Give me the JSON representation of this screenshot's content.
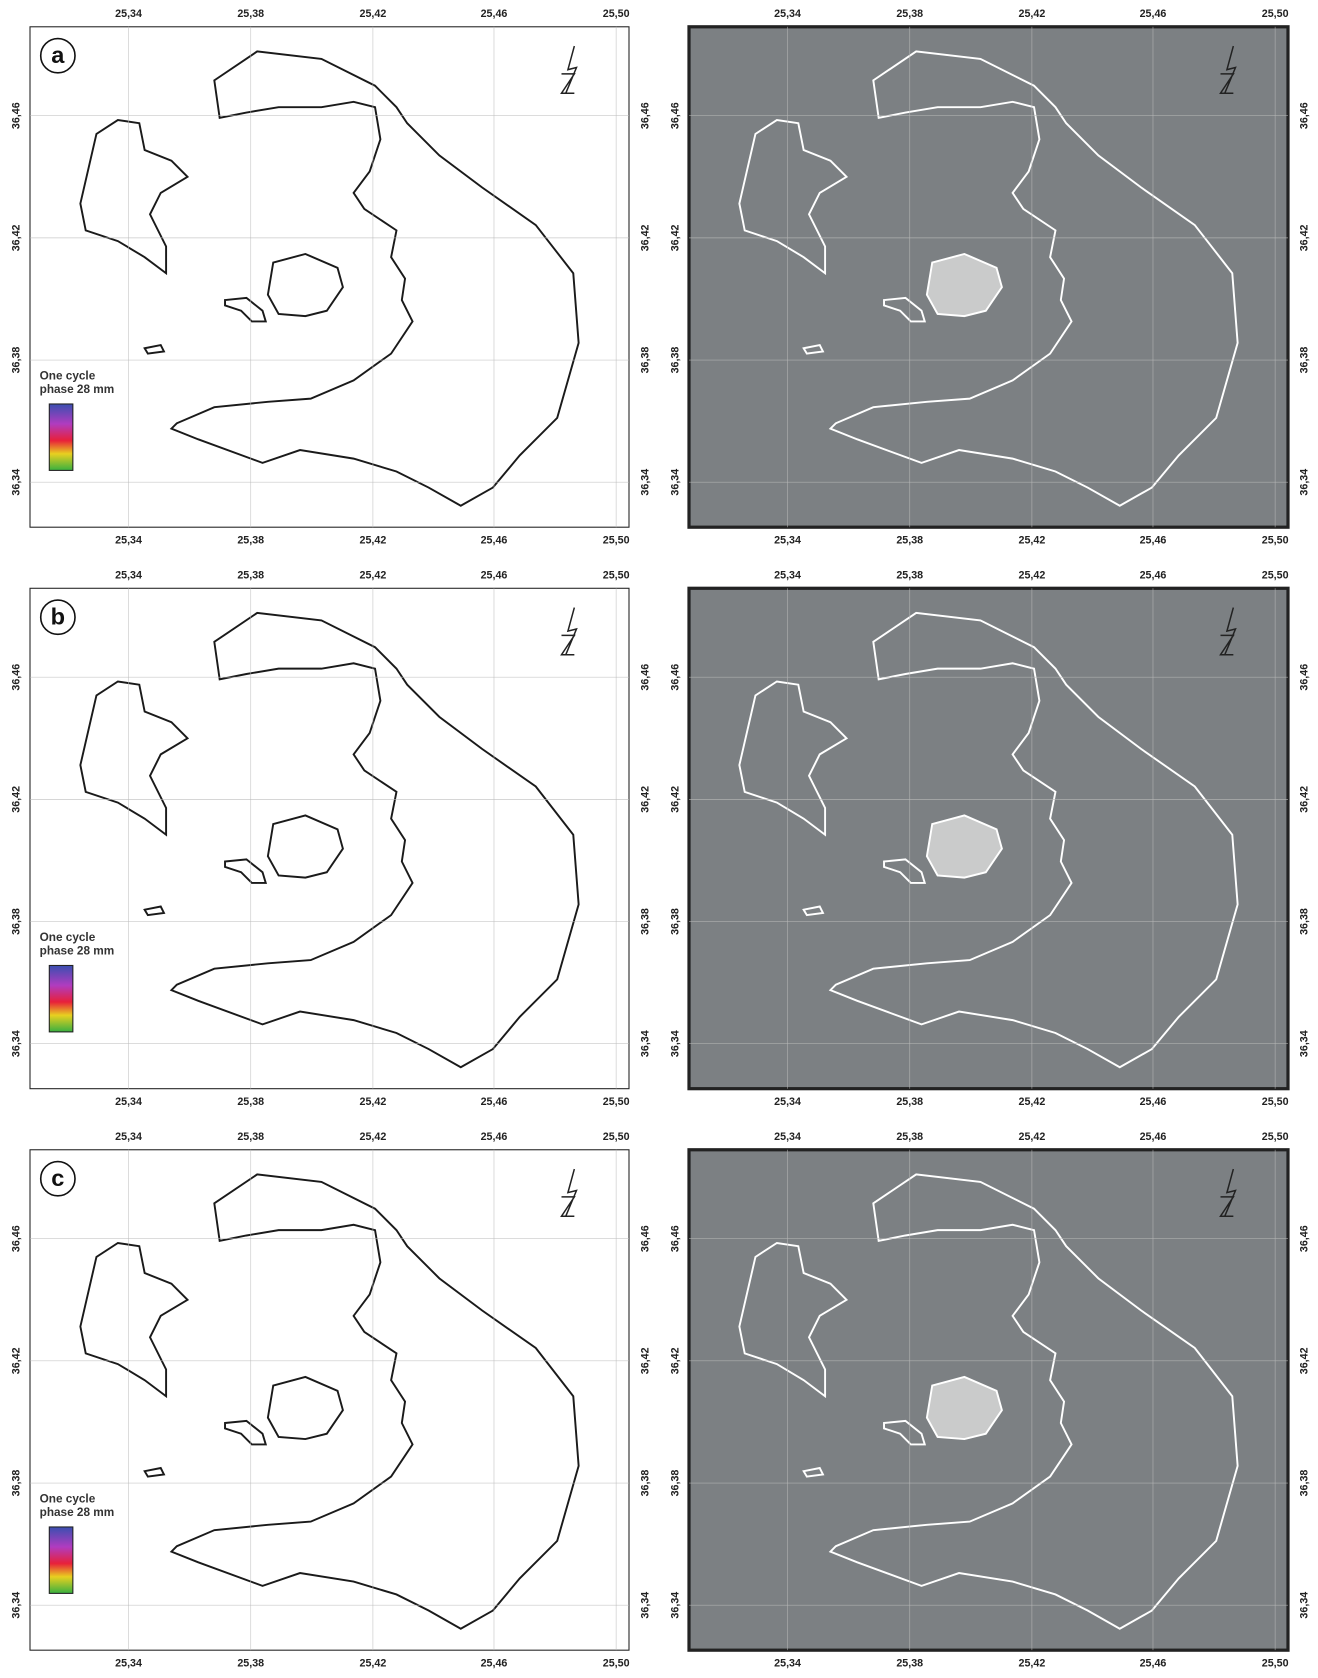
{
  "panels": [
    {
      "label": "a",
      "legend_title": "One cycle",
      "legend_subtitle": "phase 28 mm"
    },
    {
      "label": "b",
      "legend_title": "One cycle",
      "legend_subtitle": "phase 28 mm"
    },
    {
      "label": "c",
      "legend_title": "One cycle",
      "legend_subtitle": "phase 28 mm"
    }
  ],
  "axes": {
    "x_ticks": [
      "25,34",
      "25,38",
      "25,42",
      "25,46",
      "25,50"
    ],
    "y_ticks": [
      "36,46",
      "36,42",
      "36,38",
      "36,34"
    ]
  }
}
